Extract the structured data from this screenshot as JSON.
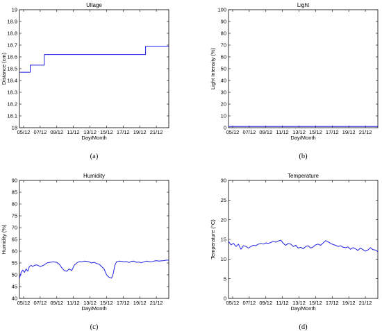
{
  "chart_data": [
    {
      "type": "line",
      "title": "Ullage",
      "caption": "(a)",
      "xlabel": "Day/Month",
      "ylabel": "Distance (cm)",
      "ylim": [
        18,
        19
      ],
      "yticks": [
        "18",
        "18.1",
        "18.2",
        "18.3",
        "18.4",
        "18.5",
        "18.6",
        "18.7",
        "18.8",
        "18.9",
        "19"
      ],
      "xlim": [
        4.5,
        22.5
      ],
      "xticks": [
        "05/12",
        "07/12",
        "09/12",
        "11/12",
        "13/12",
        "15/12",
        "17/12",
        "19/12",
        "21/12"
      ],
      "grid": false,
      "color": "#1f1fe6",
      "series": [
        {
          "x": [
            4.5,
            5.8,
            5.8,
            7.5,
            7.5,
            19.7,
            19.7,
            22.5
          ],
          "y": [
            18.47,
            18.47,
            18.53,
            18.53,
            18.62,
            18.62,
            18.69,
            18.69
          ]
        }
      ]
    },
    {
      "type": "line",
      "title": "Light",
      "caption": "(b)",
      "xlabel": "Day/Month",
      "ylabel": "Light Intensity (%)",
      "ylim": [
        0,
        100
      ],
      "yticks": [
        "0",
        "10",
        "20",
        "30",
        "40",
        "50",
        "60",
        "70",
        "80",
        "90",
        "100"
      ],
      "xlim": [
        4.5,
        22.5
      ],
      "xticks": [
        "05/12",
        "07/12",
        "09/12",
        "11/12",
        "13/12",
        "15/12",
        "17/12",
        "19/12",
        "21/12"
      ],
      "grid": false,
      "color": "#1f1fe6",
      "series": [
        {
          "x": [
            4.5,
            22.5
          ],
          "y": [
            1,
            1
          ]
        }
      ]
    },
    {
      "type": "line",
      "title": "Humidity",
      "caption": "(c)",
      "xlabel": "Day/Month",
      "ylabel": "Humidity (%)",
      "ylim": [
        40,
        90
      ],
      "yticks": [
        "40",
        "45",
        "50",
        "55",
        "60",
        "65",
        "70",
        "75",
        "80",
        "85",
        "90"
      ],
      "xlim": [
        4.5,
        22.5
      ],
      "xticks": [
        "05/12",
        "07/12",
        "09/12",
        "11/12",
        "13/12",
        "15/12",
        "17/12",
        "19/12",
        "21/12"
      ],
      "grid": false,
      "color": "#1f1fe6",
      "series": [
        {
          "x": [
            4.5,
            4.7,
            4.9,
            5.1,
            5.3,
            5.5,
            5.7,
            5.9,
            6.1,
            6.3,
            6.6,
            7.0,
            7.4,
            7.8,
            8.2,
            8.6,
            9.0,
            9.3,
            9.6,
            9.9,
            10.2,
            10.5,
            10.8,
            11.1,
            11.4,
            11.7,
            12.0,
            12.3,
            12.6,
            12.9,
            13.2,
            13.5,
            13.8,
            14.1,
            14.4,
            14.7,
            15.0,
            15.2,
            15.4,
            15.6,
            15.8,
            16.0,
            16.2,
            16.5,
            16.8,
            17.1,
            17.4,
            17.7,
            18.0,
            18.3,
            18.6,
            18.9,
            19.2,
            19.5,
            19.8,
            20.1,
            20.4,
            20.7,
            21.0,
            21.3,
            21.6,
            21.9,
            22.2,
            22.5
          ],
          "y": [
            48.5,
            51,
            52,
            51,
            52.5,
            51.5,
            53.5,
            54,
            53.5,
            54,
            54.2,
            53.5,
            54,
            55,
            55.3,
            55.5,
            55.2,
            54.5,
            53,
            51.8,
            51.5,
            52.5,
            51.8,
            54,
            55,
            55.6,
            55.5,
            55.8,
            55.7,
            55.5,
            55,
            55.3,
            54.8,
            54.5,
            53.5,
            52.5,
            50,
            49.2,
            48.8,
            48.6,
            50.5,
            54,
            55.5,
            55.8,
            55.7,
            55.5,
            55.6,
            55.2,
            55.7,
            55.8,
            55.3,
            55.4,
            55.1,
            55.5,
            55.8,
            55.6,
            55.5,
            55.8,
            56,
            55.8,
            55.9,
            56,
            56.2,
            56.2
          ]
        }
      ]
    },
    {
      "type": "line",
      "title": "Temperature",
      "caption": "(d)",
      "xlabel": "Day/Month",
      "ylabel": "Temperature (°C)",
      "ylim": [
        0,
        30
      ],
      "yticks": [
        "0",
        "5",
        "10",
        "15",
        "20",
        "25",
        "30"
      ],
      "xlim": [
        4.5,
        22.5
      ],
      "xticks": [
        "05/12",
        "07/12",
        "09/12",
        "11/12",
        "13/12",
        "15/12",
        "17/12",
        "19/12",
        "21/12"
      ],
      "grid": false,
      "color": "#1f1fe6",
      "series": [
        {
          "x": [
            4.5,
            4.8,
            5.1,
            5.4,
            5.7,
            6.0,
            6.3,
            6.6,
            6.9,
            7.2,
            7.5,
            7.8,
            8.1,
            8.4,
            8.7,
            9.0,
            9.3,
            9.6,
            9.9,
            10.2,
            10.5,
            10.8,
            11.1,
            11.4,
            11.7,
            12.0,
            12.3,
            12.6,
            12.9,
            13.2,
            13.5,
            13.8,
            14.1,
            14.4,
            14.7,
            15.0,
            15.3,
            15.6,
            15.9,
            16.2,
            16.5,
            16.8,
            17.1,
            17.4,
            17.7,
            18.0,
            18.3,
            18.6,
            18.9,
            19.2,
            19.5,
            19.8,
            20.1,
            20.4,
            20.7,
            21.0,
            21.3,
            21.6,
            21.9,
            22.2,
            22.5
          ],
          "y": [
            14.5,
            13.6,
            14,
            13.2,
            13.8,
            12.5,
            13.4,
            13.2,
            12.8,
            13.2,
            13.5,
            13.4,
            13.8,
            14,
            13.8,
            14.1,
            14,
            14.2,
            14.5,
            14.3,
            14.6,
            14.8,
            14,
            13.5,
            14,
            13.8,
            13.2,
            13.5,
            12.8,
            13,
            12.6,
            13.2,
            13.4,
            12.8,
            13.1,
            13.6,
            13.8,
            13.5,
            14.1,
            14.7,
            14.4,
            14,
            13.7,
            13.5,
            13.2,
            13.4,
            13,
            12.9,
            13.1,
            12.5,
            12.9,
            12.6,
            12.2,
            12.8,
            12.4,
            12,
            12.3,
            12.9,
            12.4,
            12.3,
            11.9
          ]
        }
      ]
    }
  ]
}
